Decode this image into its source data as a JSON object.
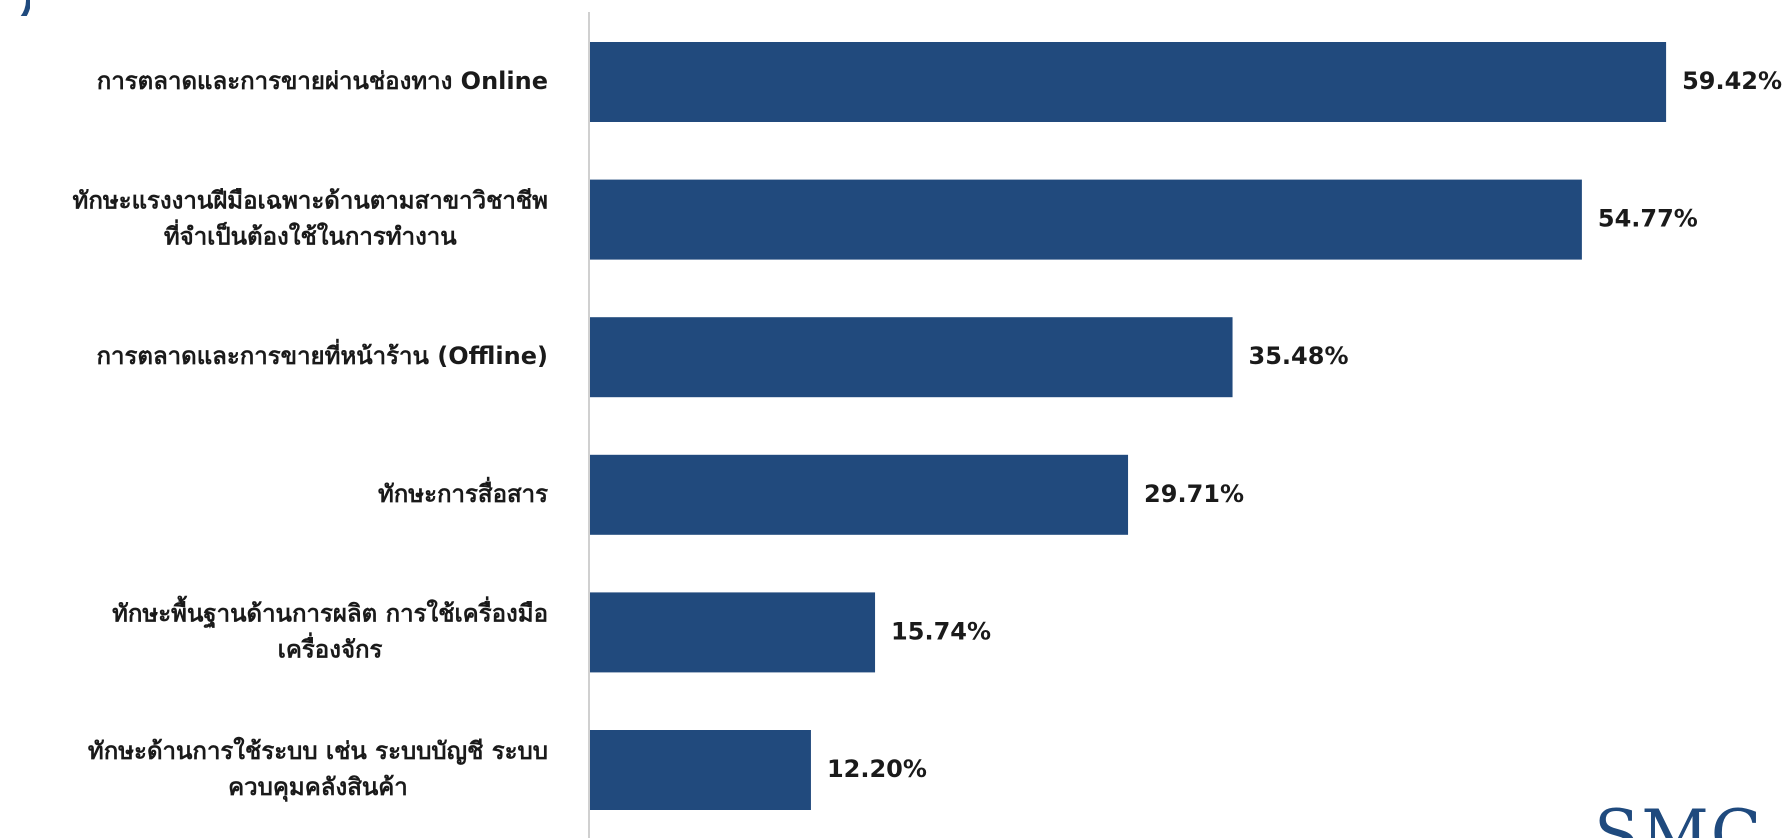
{
  "chart_data": {
    "type": "bar",
    "orientation": "horizontal",
    "categories": [
      [
        "การตลาดและการขายผ่านช่องทาง Online"
      ],
      [
        "ทักษะแรงงานฝีมือเฉพาะด้านตามสาขาวิชาชีพ",
        "ที่จำเป็นต้องใช้ในการทำงาน"
      ],
      [
        "การตลาดและการขายที่หน้าร้าน (Offline)"
      ],
      [
        "ทักษะการสื่อสาร"
      ],
      [
        "ทักษะพื้นฐานด้านการผลิต การใช้เครื่องมือ",
        "เครื่องจักร"
      ],
      [
        "ทักษะด้านการใช้ระบบ เช่น ระบบบัญชี ระบบ",
        "ควบคุมคลังสินค้า"
      ]
    ],
    "values": [
      59.42,
      54.77,
      35.48,
      29.71,
      15.74,
      12.2
    ],
    "data_labels": [
      "59.42%",
      "54.77%",
      "35.48%",
      "29.71%",
      "15.74%",
      "12.20%"
    ],
    "bar_color": "#214a7d",
    "axis_color": "#d0d0d0",
    "xlim": [
      0,
      60
    ],
    "grid": false,
    "legend": "none"
  },
  "logo": {
    "text": "SMC",
    "color": "#1f4a7e"
  }
}
